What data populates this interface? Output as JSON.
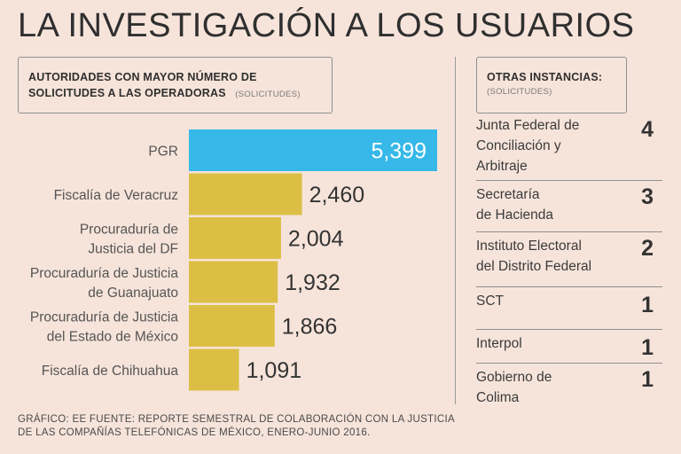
{
  "title": "LA INVESTIGACIÓN A LOS USUARIOS",
  "left_panel": {
    "heading_line1": "AUTORIDADES CON MAYOR NÚMERO DE",
    "heading_line2": "SOLICITUDES A LAS OPERADORAS",
    "heading_unit": "(SOLICITUDES)"
  },
  "right_panel": {
    "heading": "OTRAS INSTANCIAS:",
    "heading_unit": "(SOLICITUDES)",
    "items": [
      {
        "name_lines": [
          "Junta Federal de",
          "Conciliación y",
          "Arbitraje"
        ],
        "value": "4"
      },
      {
        "name_lines": [
          "Secretaría",
          "de Hacienda"
        ],
        "value": "3"
      },
      {
        "name_lines": [
          "Instituto Electoral",
          "del Distrito Federal"
        ],
        "value": "2"
      },
      {
        "name_lines": [
          "SCT"
        ],
        "value": "1"
      },
      {
        "name_lines": [
          "Interpol"
        ],
        "value": "1"
      },
      {
        "name_lines": [
          "Gobierno de",
          "Colima"
        ],
        "value": "1"
      }
    ]
  },
  "colors": {
    "highlight": "#36b8e8",
    "bar": "#dcbe45",
    "background": "#f6e4da"
  },
  "chart_data": {
    "type": "bar",
    "orientation": "horizontal",
    "categories": [
      [
        "PGR"
      ],
      [
        "Fiscalía de Veracruz"
      ],
      [
        "Procuraduría de",
        "Justicia del DF"
      ],
      [
        "Procuraduría de Justicia",
        "de Guanajuato"
      ],
      [
        "Procuraduría de Justicia",
        "del Estado de México"
      ],
      [
        "Fiscalía de Chihuahua"
      ]
    ],
    "values": [
      5399,
      2460,
      2004,
      1932,
      1866,
      1091
    ],
    "value_labels": [
      "5,399",
      "2,460",
      "2,004",
      "1,932",
      "1,866",
      "1,091"
    ],
    "highlight_index": 0,
    "xlim": [
      0,
      5399
    ],
    "unit": "solicitudes"
  },
  "footer": {
    "line1": "GRÁFICO: EE  FUENTE: REPORTE SEMESTRAL DE COLABORACIÓN CON LA JUSTICIA",
    "line2": "DE LAS COMPAÑÍAS TELEFÓNICAS DE MÉXICO, ENERO-JUNIO 2016."
  }
}
